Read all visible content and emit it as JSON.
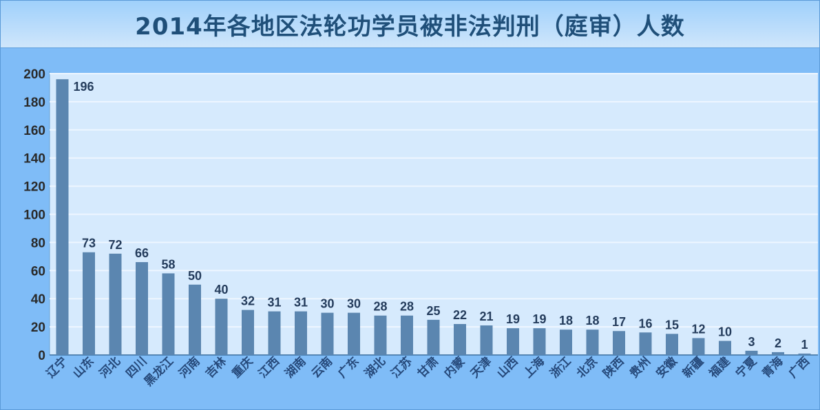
{
  "chart_data": {
    "type": "bar",
    "title": "2014年各地区法轮功学员被非法判刑（庭审）人数",
    "xlabel": "",
    "ylabel": "",
    "ylim": [
      0,
      200
    ],
    "yticks": [
      0,
      20,
      40,
      60,
      80,
      100,
      120,
      140,
      160,
      180,
      200
    ],
    "grid": true,
    "categories": [
      "辽宁",
      "山东",
      "河北",
      "四川",
      "黑龙江",
      "河南",
      "吉林",
      "重庆",
      "江西",
      "湖南",
      "云南",
      "广东",
      "湖北",
      "江苏",
      "甘肃",
      "内蒙",
      "天津",
      "山西",
      "上海",
      "浙江",
      "北京",
      "陕西",
      "贵州",
      "安徽",
      "新疆",
      "福建",
      "宁夏",
      "青海",
      "广西"
    ],
    "values": [
      196,
      73,
      72,
      66,
      58,
      50,
      40,
      32,
      31,
      31,
      30,
      30,
      28,
      28,
      25,
      22,
      21,
      19,
      19,
      18,
      18,
      17,
      16,
      15,
      12,
      10,
      3,
      2,
      1
    ],
    "colors": {
      "bar": "#5b86b0",
      "plot_background": "#d6eafd",
      "frame_background": "#7fbcf7",
      "title": "#1f4f79"
    }
  }
}
